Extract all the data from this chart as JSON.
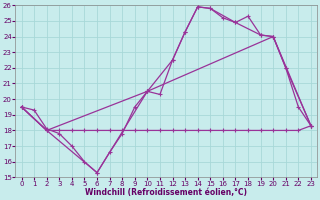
{
  "xlabel": "Windchill (Refroidissement éolien,°C)",
  "bg_color": "#c8ecec",
  "grid_color": "#a8d8d8",
  "line_color": "#993399",
  "xlim": [
    -0.5,
    23.5
  ],
  "ylim": [
    15,
    26
  ],
  "yticks": [
    15,
    16,
    17,
    18,
    19,
    20,
    21,
    22,
    23,
    24,
    25,
    26
  ],
  "xticks": [
    0,
    1,
    2,
    3,
    4,
    5,
    6,
    7,
    8,
    9,
    10,
    11,
    12,
    13,
    14,
    15,
    16,
    17,
    18,
    19,
    20,
    21,
    22,
    23
  ],
  "series1_x": [
    0,
    1,
    2,
    3,
    4,
    5,
    6,
    7,
    8,
    9,
    10,
    11,
    12,
    13,
    14,
    15,
    16,
    17,
    18,
    19,
    20,
    21,
    22,
    23
  ],
  "series1_y": [
    19.5,
    19.3,
    18.1,
    17.8,
    17.0,
    16.0,
    15.3,
    16.6,
    17.8,
    19.5,
    20.5,
    20.3,
    22.5,
    24.3,
    25.9,
    25.8,
    25.2,
    24.9,
    25.3,
    24.1,
    24.0,
    22.0,
    19.5,
    18.3
  ],
  "series2_x": [
    0,
    2,
    6,
    10,
    12,
    13,
    14,
    15,
    17,
    19,
    20,
    21,
    23
  ],
  "series2_y": [
    19.5,
    18.0,
    15.3,
    20.5,
    22.5,
    24.3,
    25.9,
    25.8,
    24.9,
    24.1,
    24.0,
    22.0,
    18.3
  ],
  "series3_x": [
    0,
    2,
    10,
    20,
    23
  ],
  "series3_y": [
    19.5,
    18.0,
    20.5,
    24.0,
    18.3
  ],
  "series4_x": [
    0,
    2,
    3,
    4,
    5,
    6,
    7,
    8,
    9,
    10,
    11,
    12,
    13,
    14,
    15,
    16,
    17,
    18,
    19,
    20,
    21,
    22,
    23
  ],
  "series4_y": [
    19.5,
    18.0,
    18.0,
    18.0,
    18.0,
    18.0,
    18.0,
    18.0,
    18.0,
    18.0,
    18.0,
    18.0,
    18.0,
    18.0,
    18.0,
    18.0,
    18.0,
    18.0,
    18.0,
    18.0,
    18.0,
    18.0,
    18.3
  ],
  "tick_fontsize": 5,
  "xlabel_fontsize": 5.5
}
